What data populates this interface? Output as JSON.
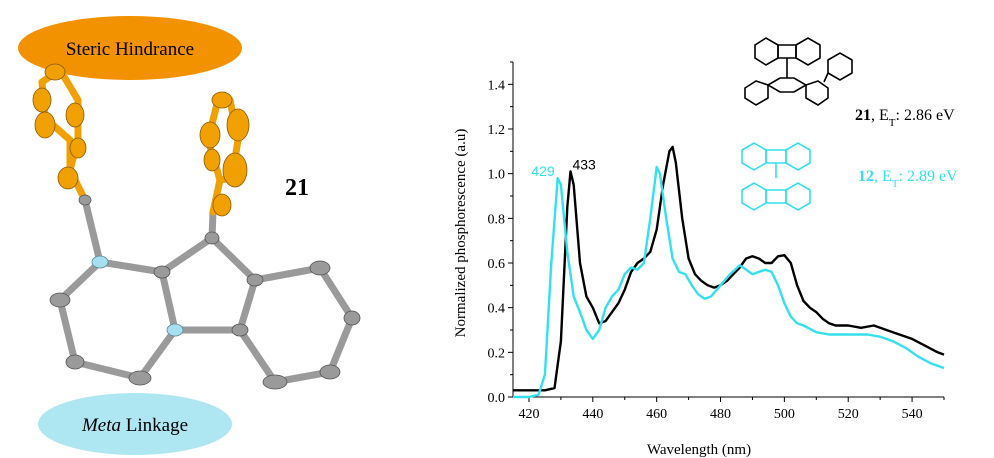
{
  "left_panel": {
    "top_label": "Steric Hindrance",
    "bottom_label_italic": "Meta",
    "bottom_label_rest": " Linkage",
    "compound_number": "21",
    "colors": {
      "top_ellipse": "#f39200",
      "bottom_ellipse": "#aee6f2",
      "phenyl": "#f0a000",
      "carbon": "#9a9a9a",
      "nitrogen": "#a8dff0"
    }
  },
  "chart_data": {
    "type": "line",
    "xlabel": "Wavelength (nm)",
    "ylabel": "Normalized phosphorescence (a.u)",
    "xlim": [
      415,
      550
    ],
    "ylim": [
      0,
      1.5
    ],
    "xticks": [
      420,
      440,
      460,
      480,
      500,
      520,
      540
    ],
    "yticks": [
      0.0,
      0.2,
      0.4,
      0.6,
      0.8,
      1.0,
      1.2,
      1.4
    ],
    "ytick_labels": [
      "0.0",
      "0.2",
      "0.4",
      "0.6",
      "0.8",
      "1.0",
      "1.2",
      "1.4"
    ],
    "series": [
      {
        "name": "21",
        "color": "#000000",
        "points": [
          [
            415,
            0.03
          ],
          [
            425,
            0.03
          ],
          [
            428,
            0.04
          ],
          [
            430,
            0.25
          ],
          [
            432,
            0.85
          ],
          [
            433,
            1.01
          ],
          [
            434,
            0.95
          ],
          [
            436,
            0.6
          ],
          [
            438,
            0.45
          ],
          [
            440,
            0.4
          ],
          [
            442,
            0.33
          ],
          [
            444,
            0.34
          ],
          [
            446,
            0.38
          ],
          [
            448,
            0.42
          ],
          [
            450,
            0.48
          ],
          [
            452,
            0.56
          ],
          [
            454,
            0.6
          ],
          [
            456,
            0.62
          ],
          [
            458,
            0.65
          ],
          [
            460,
            0.75
          ],
          [
            462,
            0.95
          ],
          [
            464,
            1.1
          ],
          [
            465,
            1.12
          ],
          [
            466,
            1.05
          ],
          [
            468,
            0.8
          ],
          [
            470,
            0.62
          ],
          [
            472,
            0.55
          ],
          [
            474,
            0.52
          ],
          [
            476,
            0.5
          ],
          [
            478,
            0.49
          ],
          [
            480,
            0.5
          ],
          [
            482,
            0.52
          ],
          [
            484,
            0.55
          ],
          [
            486,
            0.58
          ],
          [
            488,
            0.62
          ],
          [
            490,
            0.63
          ],
          [
            492,
            0.62
          ],
          [
            494,
            0.6
          ],
          [
            496,
            0.6
          ],
          [
            498,
            0.63
          ],
          [
            500,
            0.635
          ],
          [
            502,
            0.6
          ],
          [
            504,
            0.5
          ],
          [
            506,
            0.43
          ],
          [
            508,
            0.4
          ],
          [
            510,
            0.38
          ],
          [
            512,
            0.35
          ],
          [
            514,
            0.33
          ],
          [
            516,
            0.32
          ],
          [
            520,
            0.32
          ],
          [
            524,
            0.31
          ],
          [
            528,
            0.32
          ],
          [
            532,
            0.3
          ],
          [
            536,
            0.28
          ],
          [
            540,
            0.26
          ],
          [
            544,
            0.23
          ],
          [
            548,
            0.2
          ],
          [
            550,
            0.19
          ]
        ]
      },
      {
        "name": "12",
        "color": "#33e0ec",
        "points": [
          [
            415,
            0.0
          ],
          [
            420,
            0.0
          ],
          [
            423,
            0.01
          ],
          [
            425,
            0.1
          ],
          [
            427,
            0.6
          ],
          [
            429,
            0.98
          ],
          [
            430,
            0.95
          ],
          [
            432,
            0.65
          ],
          [
            434,
            0.45
          ],
          [
            436,
            0.38
          ],
          [
            438,
            0.3
          ],
          [
            440,
            0.26
          ],
          [
            442,
            0.3
          ],
          [
            444,
            0.4
          ],
          [
            446,
            0.45
          ],
          [
            448,
            0.48
          ],
          [
            450,
            0.55
          ],
          [
            452,
            0.58
          ],
          [
            454,
            0.57
          ],
          [
            456,
            0.6
          ],
          [
            458,
            0.8
          ],
          [
            460,
            1.03
          ],
          [
            461,
            1.0
          ],
          [
            463,
            0.8
          ],
          [
            465,
            0.62
          ],
          [
            467,
            0.56
          ],
          [
            469,
            0.55
          ],
          [
            471,
            0.5
          ],
          [
            473,
            0.46
          ],
          [
            475,
            0.44
          ],
          [
            477,
            0.45
          ],
          [
            480,
            0.5
          ],
          [
            483,
            0.55
          ],
          [
            486,
            0.59
          ],
          [
            488,
            0.57
          ],
          [
            490,
            0.55
          ],
          [
            492,
            0.56
          ],
          [
            494,
            0.57
          ],
          [
            496,
            0.56
          ],
          [
            498,
            0.5
          ],
          [
            500,
            0.42
          ],
          [
            502,
            0.36
          ],
          [
            504,
            0.33
          ],
          [
            506,
            0.32
          ],
          [
            510,
            0.29
          ],
          [
            514,
            0.28
          ],
          [
            518,
            0.28
          ],
          [
            522,
            0.28
          ],
          [
            526,
            0.28
          ],
          [
            530,
            0.27
          ],
          [
            534,
            0.25
          ],
          [
            538,
            0.22
          ],
          [
            542,
            0.18
          ],
          [
            546,
            0.15
          ],
          [
            550,
            0.13
          ]
        ]
      }
    ],
    "peak_labels": [
      {
        "text": "429",
        "x": 429,
        "y": 0.98,
        "color": "#33e0ec"
      },
      {
        "text": "433",
        "x": 433,
        "y": 1.01,
        "color": "#000000"
      }
    ],
    "structure_labels": [
      {
        "bold": "21",
        "rest": ", E",
        "sub": "T",
        "tail": ": 2.86 eV",
        "color": "#000000"
      },
      {
        "bold": "12",
        "rest": ", E",
        "sub": "T",
        "tail": ": 2.89 eV",
        "color": "#33e0ec"
      }
    ]
  }
}
